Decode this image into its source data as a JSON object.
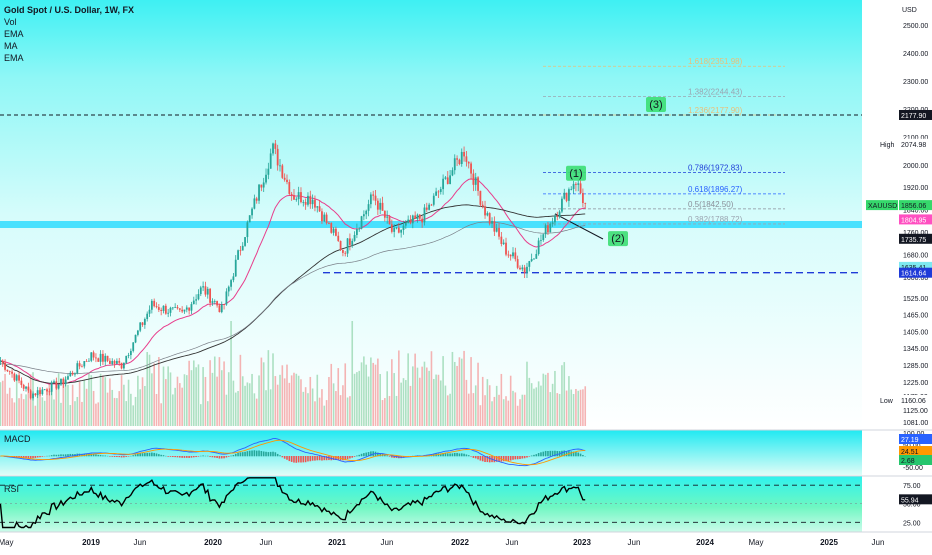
{
  "header": {
    "title": "Gold Spot / U.S. Dollar, 1W, FX",
    "indicators": [
      "Vol",
      "EMA",
      "MA",
      "EMA"
    ]
  },
  "axis": {
    "currency": "USD",
    "price_ticks": [
      2500,
      2400,
      2300,
      2200,
      2100,
      2000,
      1920,
      1840,
      1760,
      1680,
      1600,
      1525,
      1465,
      1405,
      1345,
      1285,
      1225,
      1175,
      1125,
      1081
    ],
    "time_labels": [
      "May",
      "2019",
      "Jun",
      "2020",
      "Jun",
      "2021",
      "Jun",
      "2022",
      "Jun",
      "2023",
      "Jun",
      "2024",
      "May",
      "2025",
      "Jun"
    ],
    "macd_ticks": [
      "100.00",
      "50.00",
      "0.00",
      "-50.00"
    ],
    "rsi_ticks": [
      "75.00",
      "50.00",
      "25.00"
    ]
  },
  "price_labels": {
    "high": {
      "label": "High",
      "value": "2074.98"
    },
    "low": {
      "label": "Low",
      "value": "1160.06"
    },
    "dashed_top": "2177.90",
    "symbol": {
      "label": "XAUUSD",
      "value": "1856.06"
    },
    "ema_fast": "1804.95",
    "ma_slow": "1735.75",
    "level_a": "1635.41",
    "level_b": "1614.64"
  },
  "fibonacci": [
    {
      "ratio": "1.618",
      "price": "2351.98",
      "text": "1.618(2351.98)",
      "color": "#e8c07a"
    },
    {
      "ratio": "1.382",
      "price": "2244.43",
      "text": "1.382(2244.43)",
      "color": "#9aa5b1"
    },
    {
      "ratio": "1.236",
      "price": "2177.90",
      "text": "1.236(2177.90)",
      "color": "#e8c07a"
    },
    {
      "ratio": "0.786",
      "price": "1972.83",
      "text": "0.786(1972.83)",
      "color": "#1e3fd8"
    },
    {
      "ratio": "0.618",
      "price": "1896.27",
      "text": "0.618(1896.27)",
      "color": "#2962ff"
    },
    {
      "ratio": "0.5",
      "price": "1842.50",
      "text": "0.5(1842.50)",
      "color": "#8a8f99"
    },
    {
      "ratio": "0.382",
      "price": "1788.72",
      "text": "0.382(1788.72)",
      "color": "#9aa5b1"
    }
  ],
  "wave_labels": [
    "(1)",
    "(2)",
    "(3)"
  ],
  "macd": {
    "label": "MACD",
    "values": [
      "27.19",
      "24.51",
      "2.68"
    ]
  },
  "rsi": {
    "label": "RSI",
    "value": "55.94"
  },
  "colors": {
    "background_top": "#4ff3f5",
    "background_mid": "#b8fbfa",
    "up": "#26a69a",
    "down": "#ef5350",
    "ema_line": "#e83e8c",
    "ma_line": "#333333",
    "band": "#00d2ff",
    "label_green": "#26c66e",
    "label_pink": "#ff4fc1",
    "label_dark": "#131722",
    "label_blue": "#1f3bd8"
  },
  "chart_data": {
    "type": "candlestick",
    "title": "Gold Spot / U.S. Dollar, 1W, FX",
    "ylabel": "USD",
    "ylim": [
      1060,
      2560
    ],
    "anchors": [
      {
        "date": "2018-05",
        "close": 1300
      },
      {
        "date": "2018-08",
        "close": 1180
      },
      {
        "date": "2018-11",
        "close": 1220
      },
      {
        "date": "2019-02",
        "close": 1320
      },
      {
        "date": "2019-05",
        "close": 1285
      },
      {
        "date": "2019-08",
        "close": 1500
      },
      {
        "date": "2019-11",
        "close": 1465
      },
      {
        "date": "2020-01",
        "close": 1560
      },
      {
        "date": "2020-03",
        "close": 1480
      },
      {
        "date": "2020-05",
        "close": 1730
      },
      {
        "date": "2020-08",
        "close": 2060
      },
      {
        "date": "2020-10",
        "close": 1890
      },
      {
        "date": "2020-12",
        "close": 1880
      },
      {
        "date": "2021-03",
        "close": 1690
      },
      {
        "date": "2021-06",
        "close": 1890
      },
      {
        "date": "2021-08",
        "close": 1750
      },
      {
        "date": "2021-11",
        "close": 1820
      },
      {
        "date": "2022-03",
        "close": 2050
      },
      {
        "date": "2022-05",
        "close": 1840
      },
      {
        "date": "2022-07",
        "close": 1700
      },
      {
        "date": "2022-09",
        "close": 1625
      },
      {
        "date": "2022-11",
        "close": 1760
      },
      {
        "date": "2023-02",
        "close": 1950
      },
      {
        "date": "2023-03",
        "close": 1856
      }
    ]
  }
}
